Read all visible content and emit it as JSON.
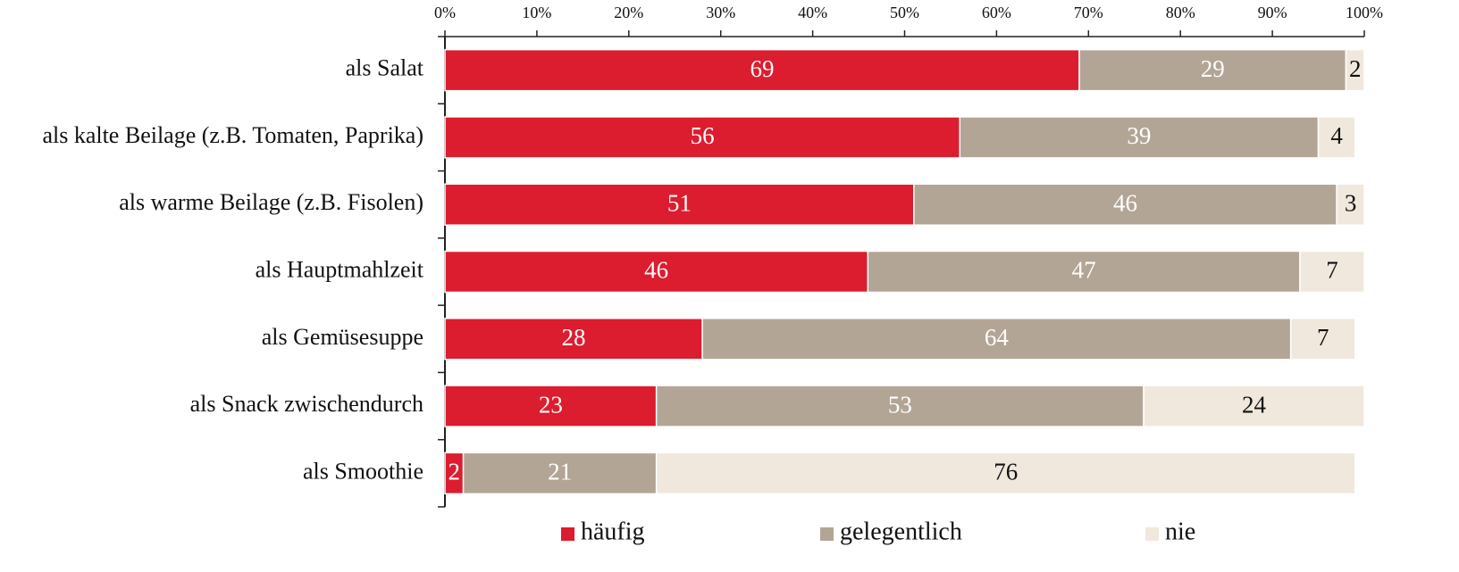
{
  "chart_data": {
    "type": "stacked-bar-horizontal",
    "categories": [
      "als Salat",
      "als kalte Beilage (z.B. Tomaten, Paprika)",
      "als warme Beilage (z.B. Fisolen)",
      "als Hauptmahlzeit",
      "als Gemüsesuppe",
      "als Snack zwischendurch",
      "als Smoothie"
    ],
    "series": [
      {
        "name": "häufig",
        "color": "#dc1c2f",
        "values": [
          69,
          56,
          51,
          46,
          28,
          23,
          2
        ]
      },
      {
        "name": "gelegentlich",
        "color": "#b3a595",
        "values": [
          29,
          39,
          46,
          47,
          64,
          53,
          21
        ]
      },
      {
        "name": "nie",
        "color": "#f0e8dc",
        "values": [
          2,
          4,
          3,
          7,
          7,
          24,
          76
        ]
      }
    ],
    "xlim": [
      0,
      100
    ],
    "xticks": [
      {
        "value": 0,
        "label": "0%"
      },
      {
        "value": 10,
        "label": "10%"
      },
      {
        "value": 20,
        "label": "20%"
      },
      {
        "value": 30,
        "label": "30%"
      },
      {
        "value": 40,
        "label": "40%"
      },
      {
        "value": 50,
        "label": "50%"
      },
      {
        "value": 60,
        "label": "60%"
      },
      {
        "value": 70,
        "label": "70%"
      },
      {
        "value": 80,
        "label": "80%"
      },
      {
        "value": 90,
        "label": "90%"
      },
      {
        "value": 100,
        "label": "100%"
      }
    ],
    "legend": "bottom"
  }
}
